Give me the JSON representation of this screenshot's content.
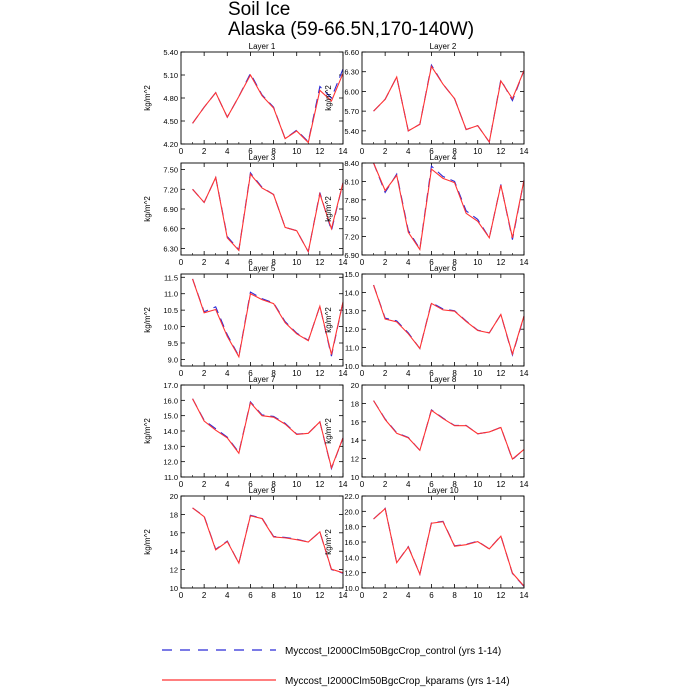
{
  "header": {
    "title": "Soil Ice",
    "subtitle": "Alaska (59-66.5N,170-140W)"
  },
  "colors": {
    "control": "#2b2bd6",
    "kparams": "#ff3333",
    "axis": "#000000"
  },
  "legend": {
    "placement": "bottom",
    "items": [
      {
        "label": "Myccost_I2000Clm50BgcCrop_control (yrs 1-14)",
        "color": "#2b2bd6",
        "dash": "dashed"
      },
      {
        "label": "Myccost_I2000Clm50BgcCrop_kparams (yrs 1-14)",
        "color": "#ff3333",
        "dash": "solid"
      }
    ]
  },
  "chart_data": [
    {
      "type": "line",
      "title": "Layer 1",
      "ylabel": "kg/m^2",
      "xlim": [
        0,
        14
      ],
      "xticks": [
        0,
        2,
        4,
        6,
        8,
        10,
        12,
        14
      ],
      "ylim": [
        4.2,
        5.4
      ],
      "yticks": [
        4.2,
        4.5,
        4.8,
        5.1,
        5.4
      ],
      "ydecimals": 2,
      "x": [
        1,
        2,
        3,
        4,
        5,
        6,
        7,
        8,
        9,
        10,
        11,
        12,
        13,
        14
      ],
      "series": [
        {
          "name": "control",
          "values": [
            4.47,
            4.68,
            4.87,
            4.55,
            4.82,
            5.12,
            4.84,
            4.68,
            4.27,
            4.38,
            4.23,
            4.95,
            4.8,
            5.18
          ]
        },
        {
          "name": "kparams",
          "values": [
            4.47,
            4.68,
            4.87,
            4.55,
            4.82,
            5.1,
            4.83,
            4.67,
            4.27,
            4.37,
            4.22,
            4.9,
            4.76,
            5.12
          ]
        }
      ]
    },
    {
      "type": "line",
      "title": "Layer 2",
      "ylabel": "kg/m^2",
      "xlim": [
        0,
        14
      ],
      "xticks": [
        0,
        2,
        4,
        6,
        8,
        10,
        12,
        14
      ],
      "ylim": [
        5.2,
        6.6
      ],
      "yticks": [
        5.4,
        5.7,
        6.0,
        6.3,
        6.6
      ],
      "ydecimals": 2,
      "x": [
        1,
        2,
        3,
        4,
        5,
        6,
        7,
        8,
        9,
        10,
        11,
        12,
        13,
        14
      ],
      "series": [
        {
          "name": "control",
          "values": [
            5.7,
            5.88,
            6.22,
            5.4,
            5.5,
            6.4,
            6.11,
            5.89,
            5.42,
            5.48,
            5.23,
            6.18,
            5.86,
            6.32
          ]
        },
        {
          "name": "kparams",
          "values": [
            5.7,
            5.88,
            6.22,
            5.4,
            5.5,
            6.38,
            6.11,
            5.89,
            5.42,
            5.48,
            5.23,
            6.16,
            5.89,
            6.32
          ]
        }
      ]
    },
    {
      "type": "line",
      "title": "Layer 3",
      "ylabel": "kg/m^2",
      "xlim": [
        0,
        14
      ],
      "xticks": [
        0,
        2,
        4,
        6,
        8,
        10,
        12,
        14
      ],
      "ylim": [
        6.2,
        7.6
      ],
      "yticks": [
        6.3,
        6.6,
        6.9,
        7.2,
        7.5
      ],
      "ydecimals": 2,
      "x": [
        1,
        2,
        3,
        4,
        5,
        6,
        7,
        8,
        9,
        10,
        11,
        12,
        13,
        14
      ],
      "series": [
        {
          "name": "control",
          "values": [
            7.2,
            7.0,
            7.38,
            6.48,
            6.28,
            7.45,
            7.23,
            7.12,
            6.62,
            6.57,
            6.25,
            7.15,
            6.57,
            7.3
          ]
        },
        {
          "name": "kparams",
          "values": [
            7.2,
            7.0,
            7.38,
            6.46,
            6.27,
            7.43,
            7.22,
            7.12,
            6.62,
            6.57,
            6.25,
            7.13,
            6.6,
            7.3
          ]
        }
      ]
    },
    {
      "type": "line",
      "title": "Layer 4",
      "ylabel": "kg/m^2",
      "xlim": [
        0,
        14
      ],
      "xticks": [
        0,
        2,
        4,
        6,
        8,
        10,
        12,
        14
      ],
      "ylim": [
        6.9,
        8.4
      ],
      "yticks": [
        6.9,
        7.2,
        7.5,
        7.8,
        8.1,
        8.4
      ],
      "ydecimals": 2,
      "x": [
        1,
        2,
        3,
        4,
        5,
        6,
        7,
        8,
        9,
        10,
        11,
        12,
        13,
        14
      ],
      "series": [
        {
          "name": "control",
          "values": [
            8.4,
            7.92,
            8.22,
            7.3,
            7.0,
            8.35,
            8.18,
            8.1,
            7.62,
            7.48,
            7.18,
            8.05,
            7.15,
            8.12
          ]
        },
        {
          "name": "kparams",
          "values": [
            8.4,
            7.95,
            8.2,
            7.27,
            6.99,
            8.3,
            8.15,
            8.08,
            7.58,
            7.45,
            7.18,
            8.04,
            7.18,
            8.12
          ]
        }
      ]
    },
    {
      "type": "line",
      "title": "Layer 5",
      "ylabel": "kg/m^2",
      "xlim": [
        0,
        14
      ],
      "xticks": [
        0,
        2,
        4,
        6,
        8,
        10,
        12,
        14
      ],
      "ylim": [
        8.8,
        11.6
      ],
      "yticks": [
        9.0,
        9.5,
        10.0,
        10.5,
        11.0,
        11.5
      ],
      "ydecimals": 1,
      "x": [
        1,
        2,
        3,
        4,
        5,
        6,
        7,
        8,
        9,
        10,
        11,
        12,
        13,
        14
      ],
      "series": [
        {
          "name": "control",
          "values": [
            11.45,
            10.45,
            10.6,
            9.75,
            9.1,
            11.05,
            10.85,
            10.72,
            10.15,
            9.8,
            9.58,
            10.62,
            9.1,
            10.75
          ]
        },
        {
          "name": "kparams",
          "values": [
            11.45,
            10.42,
            10.52,
            9.7,
            9.08,
            11.0,
            10.82,
            10.7,
            10.12,
            9.78,
            9.57,
            10.62,
            9.15,
            10.75
          ]
        }
      ]
    },
    {
      "type": "line",
      "title": "Layer 6",
      "ylabel": "kg/m^2",
      "xlim": [
        0,
        14
      ],
      "xticks": [
        0,
        2,
        4,
        6,
        8,
        10,
        12,
        14
      ],
      "ylim": [
        10.0,
        15.0
      ],
      "yticks": [
        10.0,
        11.0,
        12.0,
        13.0,
        14.0,
        15.0
      ],
      "ydecimals": 1,
      "x": [
        1,
        2,
        3,
        4,
        5,
        6,
        7,
        8,
        9,
        10,
        11,
        12,
        13,
        14
      ],
      "series": [
        {
          "name": "control",
          "values": [
            14.4,
            12.6,
            12.45,
            11.8,
            10.95,
            13.45,
            13.1,
            13.0,
            12.45,
            11.95,
            11.8,
            12.8,
            10.6,
            12.7
          ]
        },
        {
          "name": "kparams",
          "values": [
            14.4,
            12.55,
            12.4,
            11.75,
            10.95,
            13.4,
            13.05,
            12.98,
            12.42,
            11.93,
            11.8,
            12.8,
            10.65,
            12.72
          ]
        }
      ]
    },
    {
      "type": "line",
      "title": "Layer 7",
      "ylabel": "kg/m^2",
      "xlim": [
        0,
        14
      ],
      "xticks": [
        0,
        2,
        4,
        6,
        8,
        10,
        12,
        14
      ],
      "ylim": [
        11.0,
        17.0
      ],
      "yticks": [
        11.0,
        12.0,
        13.0,
        14.0,
        15.0,
        16.0,
        17.0
      ],
      "ydecimals": 1,
      "x": [
        1,
        2,
        3,
        4,
        5,
        6,
        7,
        8,
        9,
        10,
        11,
        12,
        13,
        14
      ],
      "series": [
        {
          "name": "control",
          "values": [
            16.1,
            14.7,
            14.15,
            13.6,
            12.6,
            15.9,
            15.05,
            14.95,
            14.5,
            13.8,
            13.85,
            14.6,
            11.55,
            13.55
          ]
        },
        {
          "name": "kparams",
          "values": [
            16.1,
            14.65,
            14.05,
            13.55,
            12.55,
            15.85,
            15.0,
            14.9,
            14.45,
            13.78,
            13.85,
            14.6,
            11.6,
            13.55
          ]
        }
      ]
    },
    {
      "type": "line",
      "title": "Layer 8",
      "ylabel": "kg/m^2",
      "xlim": [
        0,
        14
      ],
      "xticks": [
        0,
        2,
        4,
        6,
        8,
        10,
        12,
        14
      ],
      "ylim": [
        10,
        20
      ],
      "yticks": [
        10,
        12,
        14,
        16,
        18,
        20
      ],
      "ydecimals": 0,
      "x": [
        1,
        2,
        3,
        4,
        5,
        6,
        7,
        8,
        9,
        10,
        11,
        12,
        13,
        14
      ],
      "series": [
        {
          "name": "control",
          "values": [
            18.3,
            16.3,
            14.8,
            14.3,
            12.9,
            17.3,
            16.4,
            15.6,
            15.6,
            14.7,
            14.9,
            15.4,
            11.9,
            13.0
          ]
        },
        {
          "name": "kparams",
          "values": [
            18.3,
            16.25,
            14.75,
            14.25,
            12.9,
            17.25,
            16.35,
            15.58,
            15.58,
            14.7,
            14.9,
            15.38,
            11.95,
            13.0
          ]
        }
      ]
    },
    {
      "type": "line",
      "title": "Layer 9",
      "ylabel": "kg/m^2",
      "xlim": [
        0,
        14
      ],
      "xticks": [
        0,
        2,
        4,
        6,
        8,
        10,
        12,
        14
      ],
      "ylim": [
        10,
        20
      ],
      "yticks": [
        10,
        12,
        14,
        16,
        18,
        20
      ],
      "ydecimals": 0,
      "x": [
        1,
        2,
        3,
        4,
        5,
        6,
        7,
        8,
        9,
        10,
        11,
        12,
        13,
        14
      ],
      "series": [
        {
          "name": "control",
          "values": [
            18.7,
            17.8,
            14.2,
            15.1,
            12.7,
            17.9,
            17.6,
            15.6,
            15.5,
            15.3,
            15.0,
            16.1,
            12.0,
            11.6
          ]
        },
        {
          "name": "kparams",
          "values": [
            18.7,
            17.75,
            14.15,
            15.05,
            12.7,
            17.85,
            17.55,
            15.55,
            15.45,
            15.25,
            15.0,
            16.1,
            12.05,
            11.65
          ]
        }
      ]
    },
    {
      "type": "line",
      "title": "Layer 10",
      "ylabel": "kg/m^2",
      "xlim": [
        0,
        14
      ],
      "xticks": [
        0,
        2,
        4,
        6,
        8,
        10,
        12,
        14
      ],
      "ylim": [
        10.0,
        22.0
      ],
      "yticks": [
        10.0,
        12.0,
        14.0,
        16.0,
        18.0,
        20.0,
        22.0
      ],
      "ydecimals": 1,
      "x": [
        1,
        2,
        3,
        4,
        5,
        6,
        7,
        8,
        9,
        10,
        11,
        12,
        13,
        14
      ],
      "series": [
        {
          "name": "control",
          "values": [
            19.0,
            20.4,
            13.3,
            15.4,
            11.8,
            18.5,
            18.7,
            15.5,
            15.7,
            16.1,
            15.1,
            16.8,
            11.9,
            10.2
          ]
        },
        {
          "name": "kparams",
          "values": [
            19.0,
            20.35,
            13.3,
            15.35,
            11.8,
            18.45,
            18.65,
            15.45,
            15.65,
            16.05,
            15.1,
            16.75,
            11.95,
            10.25
          ]
        }
      ]
    }
  ]
}
